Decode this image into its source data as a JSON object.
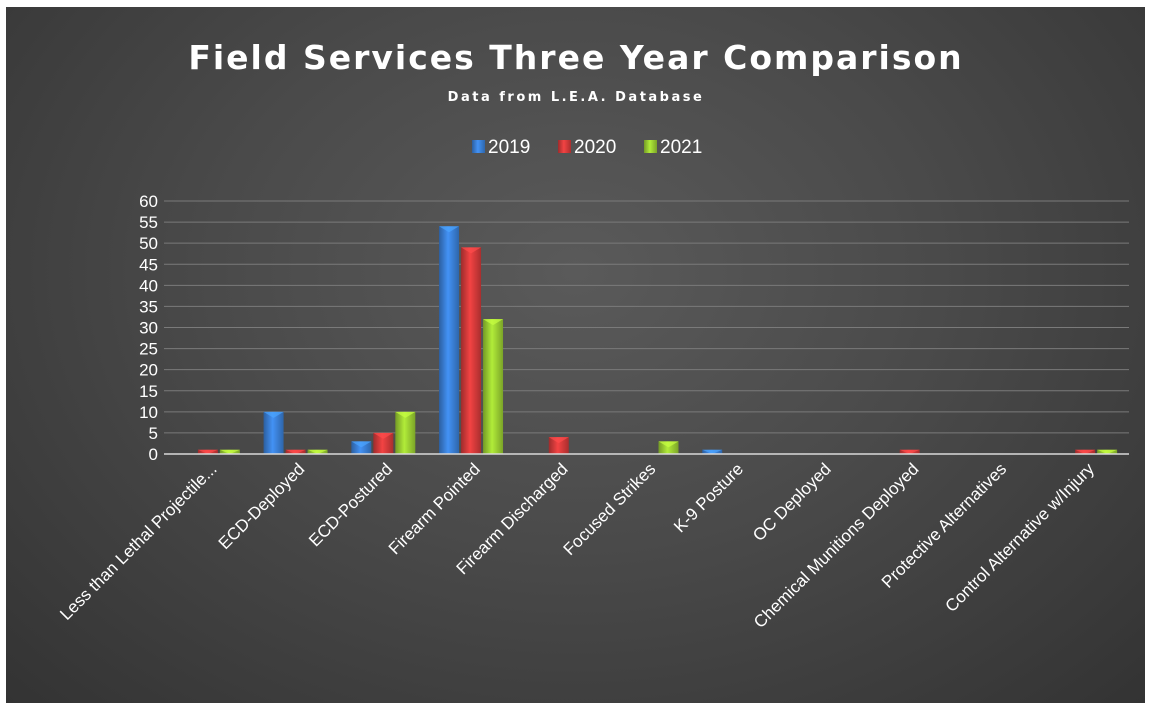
{
  "chart_data": {
    "type": "bar",
    "title": "Field Services Three Year Comparison",
    "subtitle": "Data from L.E.A. Database",
    "categories": [
      "Less than Lethal Projectile...",
      "ECD-Deployed",
      "ECD-Postured",
      "Firearm Pointed",
      "Firearm Discharged",
      "Focused Strikes",
      "K-9 Posture",
      "OC Deployed",
      "Chemical Munitions Deployed",
      "Protective Alternatives",
      "Control Alternative w/Injury"
    ],
    "series": [
      {
        "name": "2019",
        "color": "#3a7fd5",
        "values": [
          0,
          10,
          3,
          54,
          0,
          0,
          1,
          0,
          0,
          0,
          0
        ]
      },
      {
        "name": "2020",
        "color": "#d33a3a",
        "values": [
          1,
          1,
          5,
          49,
          4,
          0,
          0,
          0,
          1,
          0,
          1
        ]
      },
      {
        "name": "2021",
        "color": "#9acd32",
        "values": [
          1,
          1,
          10,
          32,
          0,
          3,
          0,
          0,
          0,
          0,
          1
        ]
      }
    ],
    "ylim": [
      0,
      60
    ],
    "yticks": [
      0,
      5,
      10,
      15,
      20,
      25,
      30,
      35,
      40,
      45,
      50,
      55,
      60
    ],
    "grid": true,
    "legend_position": "top-center"
  }
}
